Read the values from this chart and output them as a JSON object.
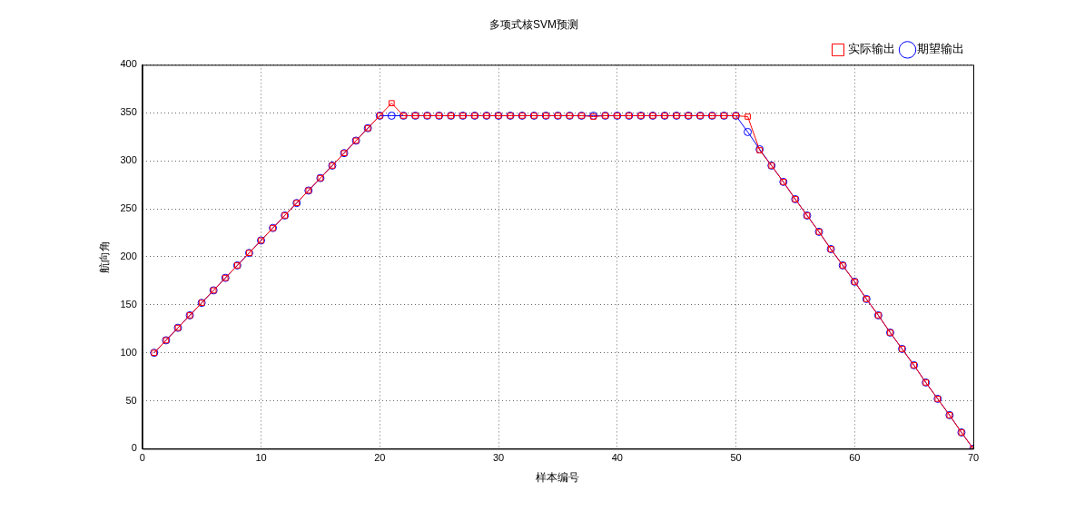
{
  "chart_data": {
    "type": "line",
    "title": "多项式核SVM预测",
    "xlabel": "样本编号",
    "ylabel": "航向角",
    "x": [
      1,
      2,
      3,
      4,
      5,
      6,
      7,
      8,
      9,
      10,
      11,
      12,
      13,
      14,
      15,
      16,
      17,
      18,
      19,
      20,
      21,
      22,
      23,
      24,
      25,
      26,
      27,
      28,
      29,
      30,
      31,
      32,
      33,
      34,
      35,
      36,
      37,
      38,
      39,
      40,
      41,
      42,
      43,
      44,
      45,
      46,
      47,
      48,
      49,
      50,
      51,
      52,
      53,
      54,
      55,
      56,
      57,
      58,
      59,
      60,
      61,
      62,
      63,
      64,
      65,
      66,
      67,
      68,
      69,
      70
    ],
    "series": [
      {
        "name": "实际输出",
        "color": "#ff0000",
        "marker": "square",
        "values": [
          100,
          113,
          126,
          139,
          152,
          165,
          178,
          191,
          204,
          217,
          230,
          243,
          256,
          269,
          282,
          295,
          308,
          321,
          334,
          347,
          360,
          347,
          347,
          347,
          347,
          347,
          347,
          347,
          347,
          347,
          347,
          347,
          347,
          347,
          347,
          347,
          347,
          346,
          347,
          347,
          347,
          347,
          347,
          347,
          347,
          347,
          347,
          347,
          347,
          347,
          346,
          311,
          295,
          278,
          260,
          243,
          226,
          208,
          191,
          174,
          156,
          139,
          121,
          104,
          87,
          69,
          52,
          35,
          17,
          0
        ]
      },
      {
        "name": "期望输出",
        "color": "#0000ff",
        "marker": "circle",
        "values": [
          100,
          113,
          126,
          139,
          152,
          165,
          178,
          191,
          204,
          217,
          230,
          243,
          256,
          269,
          282,
          295,
          308,
          321,
          334,
          347,
          347,
          347,
          347,
          347,
          347,
          347,
          347,
          347,
          347,
          347,
          347,
          347,
          347,
          347,
          347,
          347,
          347,
          347,
          347,
          347,
          347,
          347,
          347,
          347,
          347,
          347,
          347,
          347,
          347,
          347,
          330,
          312,
          295,
          278,
          260,
          243,
          226,
          208,
          191,
          174,
          156,
          139,
          121,
          104,
          87,
          69,
          52,
          35,
          17,
          0
        ]
      }
    ],
    "xlim": [
      0,
      70
    ],
    "xticks": [
      0,
      10,
      20,
      30,
      40,
      50,
      60,
      70
    ],
    "ylim": [
      0,
      400
    ],
    "yticks": [
      0,
      50,
      100,
      150,
      200,
      250,
      300,
      350,
      400
    ],
    "grid": true,
    "line_style": "solid",
    "legend": "top right"
  }
}
